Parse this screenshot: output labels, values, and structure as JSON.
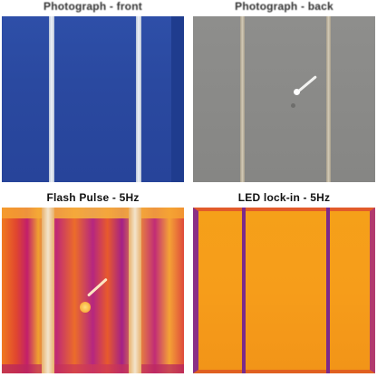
{
  "panels": {
    "top_left": {
      "label": "Photograph - front"
    },
    "top_right": {
      "label": "Photograph - back"
    },
    "bottom_left": {
      "label": "Flash Pulse - 5Hz"
    },
    "bottom_right": {
      "label": "LED lock-in - 5Hz"
    }
  },
  "colors": {
    "front_cell": "#2a49a0",
    "back_cell": "#8a8a88",
    "heatmap_hot": "#f5a235",
    "heatmap_cold": "#a42087",
    "led_base": "#f5a019"
  }
}
